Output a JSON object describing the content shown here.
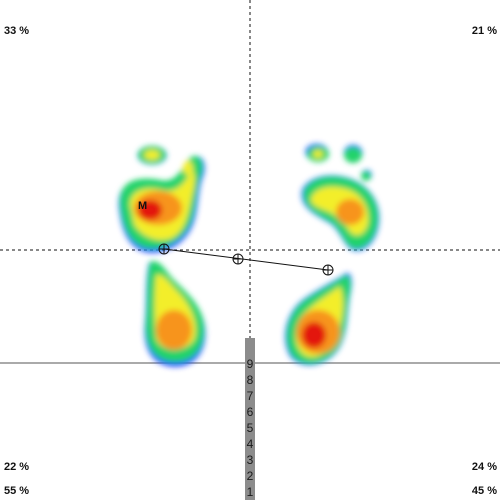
{
  "quadrants": {
    "top_left": "33 %",
    "top_right": "21 %",
    "bottom_left": "22 %",
    "bottom_right": "24 %"
  },
  "feet": {
    "left": "55 %",
    "right": "45 %"
  },
  "marker_label": "M",
  "scale_ticks": [
    "9",
    "8",
    "7",
    "6",
    "5",
    "4",
    "3",
    "2",
    "1"
  ],
  "pressure_colors": {
    "low": "#1e3cff",
    "mid_low": "#22d36a",
    "mid": "#f3ee2a",
    "mid_high": "#f7941d",
    "high": "#e3170a"
  }
}
